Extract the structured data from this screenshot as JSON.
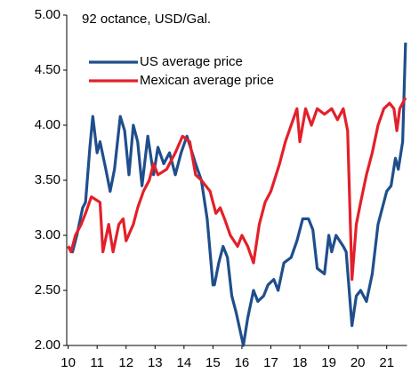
{
  "chart_data": {
    "type": "line",
    "annotation": "92 octance, USD/Gal.",
    "xlim": [
      9.95,
      21.7
    ],
    "xticks": [
      10,
      11,
      12,
      13,
      14,
      15,
      16,
      17,
      18,
      19,
      20,
      21
    ],
    "ylim": [
      2,
      5
    ],
    "yticks": [
      {
        "value": 2,
        "label": "2.00"
      },
      {
        "value": 2.5,
        "label": "2.50"
      },
      {
        "value": 3,
        "label": "3.00"
      },
      {
        "value": 3.5,
        "label": "3.50"
      },
      {
        "value": 4,
        "label": "4.00"
      },
      {
        "value": 4.5,
        "label": "4.50"
      },
      {
        "value": 5,
        "label": "5.00"
      }
    ],
    "series": [
      {
        "name": "US average price",
        "color": "#1f4e8c",
        "x": [
          10.0,
          10.15,
          10.3,
          10.5,
          10.6,
          10.75,
          10.85,
          11.0,
          11.1,
          11.3,
          11.45,
          11.6,
          11.8,
          11.95,
          12.1,
          12.25,
          12.4,
          12.55,
          12.75,
          12.95,
          13.1,
          13.3,
          13.5,
          13.7,
          13.9,
          14.1,
          14.4,
          14.6,
          14.8,
          15.0,
          15.05,
          15.2,
          15.35,
          15.5,
          15.65,
          15.8,
          16.05,
          16.2,
          16.4,
          16.55,
          16.75,
          16.9,
          17.1,
          17.25,
          17.45,
          17.7,
          17.9,
          18.1,
          18.3,
          18.45,
          18.6,
          18.85,
          19.0,
          19.1,
          19.25,
          19.5,
          19.6,
          19.8,
          19.95,
          20.1,
          20.3,
          20.5,
          20.7,
          21.0,
          21.15,
          21.3,
          21.4,
          21.55,
          21.65
        ],
        "values": [
          2.9,
          2.85,
          3.0,
          3.25,
          3.3,
          3.8,
          4.08,
          3.75,
          3.85,
          3.6,
          3.4,
          3.6,
          4.08,
          3.95,
          3.55,
          4.0,
          3.85,
          3.45,
          3.9,
          3.55,
          3.8,
          3.65,
          3.75,
          3.55,
          3.75,
          3.9,
          3.65,
          3.5,
          3.15,
          2.55,
          2.55,
          2.75,
          2.9,
          2.8,
          2.45,
          2.3,
          2.0,
          2.25,
          2.5,
          2.4,
          2.45,
          2.55,
          2.6,
          2.5,
          2.75,
          2.8,
          2.95,
          3.15,
          3.15,
          3.05,
          2.7,
          2.65,
          3.0,
          2.85,
          3.0,
          2.9,
          2.85,
          2.18,
          2.45,
          2.5,
          2.4,
          2.65,
          3.1,
          3.4,
          3.45,
          3.7,
          3.6,
          3.85,
          4.75
        ]
      },
      {
        "name": "Mexican average price",
        "color": "#e3202a",
        "x": [
          10.0,
          10.1,
          10.25,
          10.45,
          10.6,
          10.8,
          11.1,
          11.2,
          11.4,
          11.55,
          11.75,
          11.9,
          12.0,
          12.25,
          12.4,
          12.6,
          12.8,
          12.95,
          13.1,
          13.4,
          13.7,
          13.95,
          14.2,
          14.4,
          14.6,
          14.9,
          15.1,
          15.25,
          15.4,
          15.6,
          15.85,
          16.0,
          16.2,
          16.4,
          16.6,
          16.8,
          17.0,
          17.3,
          17.5,
          17.7,
          17.9,
          18.0,
          18.2,
          18.4,
          18.6,
          18.85,
          19.1,
          19.3,
          19.5,
          19.65,
          19.8,
          19.95,
          20.1,
          20.3,
          20.5,
          20.7,
          20.9,
          21.1,
          21.25,
          21.35,
          21.45,
          21.65
        ],
        "values": [
          2.9,
          2.85,
          3.0,
          3.1,
          3.2,
          3.35,
          3.3,
          2.85,
          3.1,
          2.85,
          3.1,
          3.15,
          2.95,
          3.1,
          3.25,
          3.4,
          3.5,
          3.65,
          3.55,
          3.6,
          3.75,
          3.9,
          3.85,
          3.55,
          3.5,
          3.4,
          3.2,
          3.25,
          3.15,
          3.0,
          2.9,
          3.0,
          2.9,
          2.75,
          3.1,
          3.3,
          3.4,
          3.65,
          3.85,
          4.0,
          4.15,
          3.85,
          4.15,
          4.0,
          4.15,
          4.1,
          4.15,
          4.05,
          4.15,
          3.95,
          2.6,
          3.1,
          3.3,
          3.55,
          3.75,
          4.0,
          4.15,
          4.2,
          4.15,
          3.95,
          4.15,
          4.25
        ]
      }
    ]
  }
}
